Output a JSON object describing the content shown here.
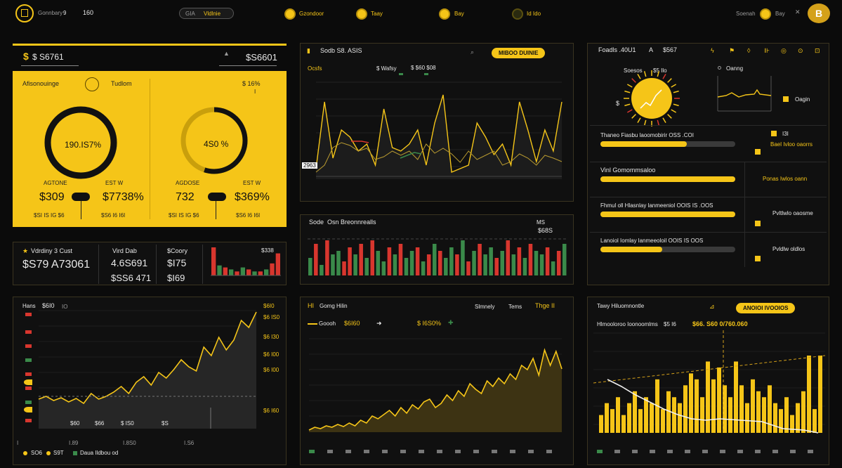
{
  "topbar": {
    "brand": "Gonnbary",
    "brand_suffix": "9",
    "brand_num": "160",
    "pill_short": "GIA",
    "pill_label": "Vldlnie",
    "nav": [
      {
        "label": "Gzondoor"
      },
      {
        "label": "Taay"
      },
      {
        "label": "Bay"
      },
      {
        "label": "Id Ido"
      }
    ],
    "user_label": "Soenah",
    "user_action": "Bay",
    "avatar_letter": "B"
  },
  "balance_panel": {
    "left_value": "$ S6761",
    "right_value": "$S6601",
    "card_title": "Afisonouinge",
    "card_sub": "Tudlom",
    "card_right": "$ 16%",
    "ring1": {
      "label": "190.IS7%",
      "caption": "AGTONE",
      "caption_right": "EST W",
      "value": "$309",
      "value_right": "$7738%",
      "sub_left": "$SI IS IG $6",
      "sub_right": "$S6 I6 I6I",
      "progress": 1.0
    },
    "ring2": {
      "label": "4S0 %",
      "caption": "AGDOSE",
      "caption_right": "EST W",
      "value": "732",
      "value_right": "$369%",
      "sub_left": "$SI IS IG $6",
      "sub_right": "$S6 I6 I6I",
      "progress": 0.55
    }
  },
  "stats_strip": {
    "c1_label": "Vdrdiny 3 Cust",
    "c1_value": "$S79 A73061",
    "c2_label": "Vird Dab",
    "c2_value": "4.6S691",
    "c2_sub": "$SS6 471",
    "c3_label": "$Coory",
    "c3_value": "$I75",
    "c3_sub": "$I69",
    "c4_label": "$338",
    "bars": [
      {
        "value": 14,
        "color": "#d8362e"
      },
      {
        "value": 5,
        "color": "#3a8a4a"
      },
      {
        "value": 4,
        "color": "#d8362e"
      },
      {
        "value": 3,
        "color": "#3a8a4a"
      },
      {
        "value": 2,
        "color": "#d8362e"
      },
      {
        "value": 4,
        "color": "#3a8a4a"
      },
      {
        "value": 3,
        "color": "#d8362e"
      },
      {
        "value": 2,
        "color": "#3a8a4a"
      },
      {
        "value": 2,
        "color": "#d8362e"
      },
      {
        "value": 3,
        "color": "#3a8a4a"
      },
      {
        "value": 6,
        "color": "#d8362e"
      },
      {
        "value": 11,
        "color": "#d8362e"
      }
    ]
  },
  "trend_panel": {
    "title": "Sodb S8. ASIS",
    "badge": "MIBOO DUINIE",
    "legend_a": "Ocsfs",
    "legend_b": "$ Wafsy",
    "legend_c": "$ $60 $08",
    "y_ticks": [
      "",
      "",
      "",
      "",
      "",
      ""
    ],
    "x_ticks": [
      "",
      "",
      "",
      "",
      "",
      "",
      "",
      ""
    ],
    "callout": "2963"
  },
  "volume_panel": {
    "title": "Sode",
    "title_b": "Osn Breonnrealls",
    "right_a": "MS",
    "right_b": "$68S",
    "bars": [
      5,
      9,
      3,
      10,
      6,
      7,
      4,
      8,
      6,
      9,
      5,
      10,
      7,
      4,
      8,
      6,
      9,
      5,
      7,
      8,
      4,
      6,
      9,
      7,
      5,
      8,
      6,
      10,
      4,
      7,
      9,
      6,
      8,
      5,
      7,
      10,
      6,
      8,
      5,
      9,
      7,
      6,
      8,
      4,
      7,
      9
    ],
    "colors": [
      "#3a8a4a",
      "#d8362e",
      "#3a8a4a",
      "#d8362e",
      "#3a8a4a",
      "#3a8a4a",
      "#d8362e",
      "#d8362e",
      "#3a8a4a",
      "#d8362e",
      "#3a8a4a",
      "#d8362e",
      "#3a8a4a",
      "#3a8a4a",
      "#d8362e",
      "#3a8a4a",
      "#d8362e",
      "#3a8a4a",
      "#3a8a4a",
      "#d8362e",
      "#3a8a4a",
      "#d8362e",
      "#3a8a4a",
      "#d8362e",
      "#3a8a4a",
      "#3a8a4a",
      "#d8362e",
      "#3a8a4a",
      "#d8362e",
      "#3a8a4a",
      "#d8362e",
      "#3a8a4a",
      "#3a8a4a",
      "#d8362e",
      "#3a8a4a",
      "#d8362e",
      "#3a8a4a",
      "#d8362e",
      "#3a8a4a",
      "#d8362e",
      "#3a8a4a",
      "#3a8a4a",
      "#d8362e",
      "#3a8a4a",
      "#d8362e",
      "#3a8a4a"
    ]
  },
  "right_panel": {
    "title": "Foadls .40U1",
    "title_b": "A",
    "title_c": "$567",
    "sun_label": "Soesos",
    "sun_sub": "$5 Ilo",
    "sun_side": "$",
    "mini_label": "Oanng",
    "mini_legend": "Oagin",
    "rows": [
      {
        "label": "Thaneo Fiasbu laoomobirir OSS .COI",
        "value": 0.64,
        "side": "Bael Ivloo oaorrs",
        "chip": "I3I"
      },
      {
        "label": "Vinl Gomommsaloo",
        "value": 1.0,
        "side": "Ponas Iwlos oann"
      },
      {
        "label": "Fhmul oll Hlasnlay lanmeeniol OOIS IS .OOS",
        "value": 1.0,
        "side": "Pvltlwlo oaosme"
      },
      {
        "label": "Lanoiol Iomlay lanmeeoloil OOIS IS OOS",
        "value": 0.46,
        "side": "Pvldlw oldlos"
      }
    ]
  },
  "bottom_left": {
    "title": "Hans",
    "title_b": "$6I0",
    "title_c": "IO",
    "footer_a": "SO6",
    "footer_b": "S9T",
    "footer_c": "Daua Ildbou od",
    "axis_vals": [
      "$6I0",
      "$6 IS0",
      "$6 I30",
      "$6 I00",
      "$6 I00",
      "$6 I60"
    ],
    "bottom_vals": [
      "$60",
      "$66",
      "$ IS0",
      "$S"
    ],
    "x_ticks": [
      "I",
      "I.89",
      "I.8S0",
      "I.S6"
    ]
  },
  "bottom_mid": {
    "title": "HI",
    "title_b": "Gomg Hilin",
    "right_a": "Slmnely",
    "right_b": "Tems",
    "right_c": "Thge II",
    "legend_a": "Goooh",
    "legend_b": "$6I60",
    "legend_c": "$ I6S0%"
  },
  "bottom_right": {
    "title": "Tawy Hiluomnontle",
    "badge": "ANOIOI IVOOIOS",
    "legend": "Hlmooloroo Ioonoomlms",
    "legend_b": "$5 I6",
    "value": "$66. S60 0/760.060",
    "bars": [
      3,
      5,
      4,
      6,
      3,
      5,
      7,
      4,
      6,
      5,
      9,
      4,
      7,
      6,
      5,
      8,
      10,
      9,
      6,
      12,
      9,
      11,
      8,
      6,
      12,
      8,
      5,
      9,
      7,
      6,
      8,
      5,
      4,
      6,
      3,
      5,
      7,
      13,
      4,
      13
    ]
  }
}
